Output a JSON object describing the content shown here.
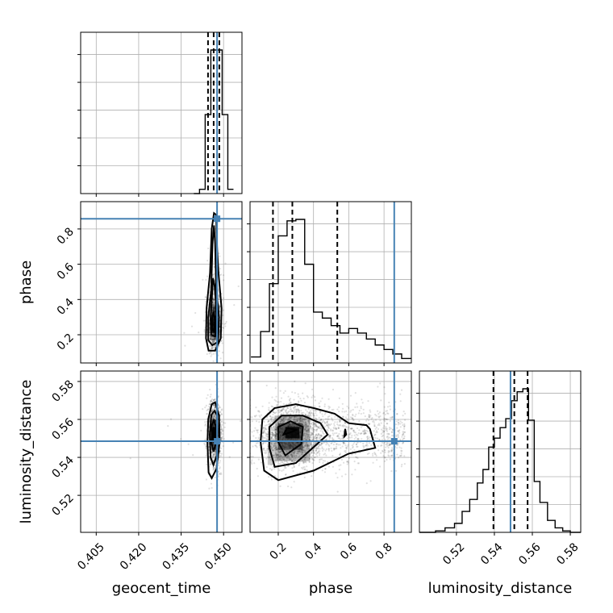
{
  "chart_data": {
    "type": "corner",
    "parameters": [
      "geocent_time",
      "phase",
      "luminosity_distance"
    ],
    "truth": {
      "geocent_time": 0.4477,
      "phase": 0.858,
      "luminosity_distance": 0.5485
    },
    "quantiles_shown": [
      0.16,
      0.5,
      0.84
    ],
    "grid": true,
    "axes": {
      "geocent_time": {
        "lim": [
          0.3995,
          0.4565
        ],
        "ticks": [
          "0.405",
          "0.420",
          "0.435",
          "0.450"
        ],
        "tick_values": [
          0.405,
          0.42,
          0.435,
          0.45
        ]
      },
      "phase": {
        "lim": [
          0.04,
          0.955
        ],
        "ticks": [
          "0.2",
          "0.4",
          "0.6",
          "0.8"
        ],
        "tick_values": [
          0.2,
          0.4,
          0.6,
          0.8
        ]
      },
      "luminosity_distance": {
        "lim": [
          0.5005,
          0.5855
        ],
        "ticks": [
          "0.52",
          "0.54",
          "0.56",
          "0.58"
        ],
        "tick_values": [
          0.52,
          0.54,
          0.56,
          0.58
        ]
      }
    },
    "histograms": {
      "geocent_time": {
        "bin_edges": [
          0.4395,
          0.4415,
          0.4435,
          0.4455,
          0.4475,
          0.4495,
          0.4515,
          0.4535
        ],
        "counts": [
          0,
          0.03,
          0.55,
          1.0,
          1.0,
          0.55,
          0.03
        ],
        "quantiles": [
          0.4445,
          0.4465,
          0.4485
        ]
      },
      "phase": {
        "bin_edges": [
          0.045,
          0.1,
          0.15,
          0.2,
          0.25,
          0.3,
          0.35,
          0.4,
          0.45,
          0.5,
          0.55,
          0.6,
          0.65,
          0.7,
          0.75,
          0.8,
          0.85,
          0.9,
          0.955
        ],
        "counts": [
          0.04,
          0.21,
          0.53,
          0.85,
          0.95,
          0.96,
          0.66,
          0.34,
          0.3,
          0.25,
          0.2,
          0.23,
          0.2,
          0.16,
          0.12,
          0.09,
          0.06,
          0.03
        ],
        "quantiles": [
          0.17,
          0.28,
          0.535
        ]
      },
      "luminosity_distance": {
        "bin_edges": [
          0.5005,
          0.509,
          0.514,
          0.519,
          0.523,
          0.527,
          0.531,
          0.534,
          0.537,
          0.54,
          0.543,
          0.546,
          0.549,
          0.552,
          0.555,
          0.558,
          0.561,
          0.564,
          0.568,
          0.572,
          0.576,
          0.58,
          0.5855
        ],
        "counts": [
          0,
          0.01,
          0.03,
          0.06,
          0.14,
          0.22,
          0.33,
          0.42,
          0.57,
          0.63,
          0.7,
          0.76,
          0.88,
          0.94,
          0.96,
          0.75,
          0.34,
          0.2,
          0.08,
          0.03,
          0.01,
          0
        ],
        "quantiles": [
          0.5395,
          0.5505,
          0.5575
        ]
      }
    }
  }
}
